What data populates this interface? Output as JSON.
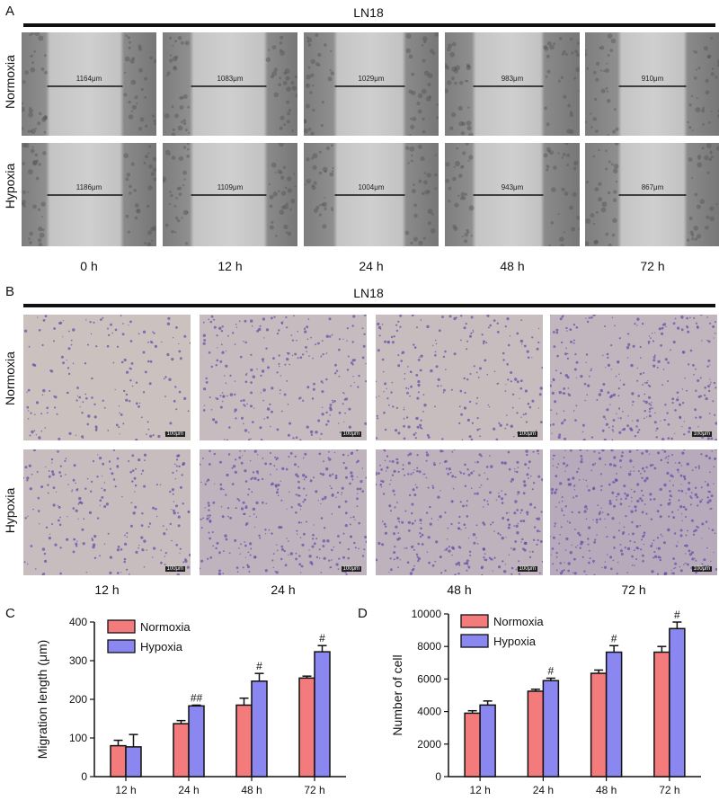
{
  "panel_a": {
    "letter": "A",
    "title": "LN18",
    "rows": [
      "Normoxia",
      "Hypoxia"
    ],
    "times": [
      "0 h",
      "12 h",
      "24 h",
      "48 h",
      "72 h"
    ],
    "normoxia_widths": [
      "1164μm",
      "1083μm",
      "1029μm",
      "983μm",
      "910μm"
    ],
    "hypoxia_widths": [
      "1186μm",
      "1109μm",
      "1004μm",
      "943μm",
      "867μm"
    ]
  },
  "panel_b": {
    "letter": "B",
    "title": "LN18",
    "rows": [
      "Normoxia",
      "Hypoxia"
    ],
    "times": [
      "12 h",
      "24 h",
      "48 h",
      "72 h"
    ],
    "scale_label": "100μm"
  },
  "panel_c": {
    "letter": "C"
  },
  "panel_d": {
    "letter": "D"
  },
  "colors": {
    "normoxia": "#f47b7b",
    "hypoxia": "#8a87f0",
    "stain": "#6a4fa8",
    "background": "#d9d2c3"
  },
  "chart_data": [
    {
      "type": "bar",
      "categories": [
        "12 h",
        "24 h",
        "48 h",
        "72 h"
      ],
      "series": [
        {
          "name": "Normoxia",
          "values": [
            80,
            137,
            185,
            255
          ],
          "errors": [
            14,
            8,
            18,
            5
          ]
        },
        {
          "name": "Hypoxia",
          "values": [
            77,
            183,
            247,
            323
          ],
          "errors": [
            32,
            2,
            20,
            16
          ]
        }
      ],
      "annotations": [
        "",
        "##",
        "#",
        "#"
      ],
      "ylabel": "Migration length (μm)",
      "ylim": [
        0,
        400
      ],
      "yticks": [
        0,
        100,
        200,
        300,
        400
      ],
      "legend": "top-left"
    },
    {
      "type": "bar",
      "categories": [
        "12 h",
        "24 h",
        "48 h",
        "72 h"
      ],
      "series": [
        {
          "name": "Normoxia",
          "values": [
            3900,
            5250,
            6350,
            7650
          ],
          "errors": [
            150,
            120,
            200,
            350
          ]
        },
        {
          "name": "Hypoxia",
          "values": [
            4400,
            5900,
            7650,
            9100
          ],
          "errors": [
            250,
            150,
            400,
            400
          ]
        }
      ],
      "annotations": [
        "",
        "#",
        "#",
        "#"
      ],
      "ylabel": "Number of cell",
      "ylim": [
        0,
        10000
      ],
      "yticks": [
        0,
        2000,
        4000,
        6000,
        8000,
        10000
      ],
      "legend": "top-left"
    }
  ]
}
